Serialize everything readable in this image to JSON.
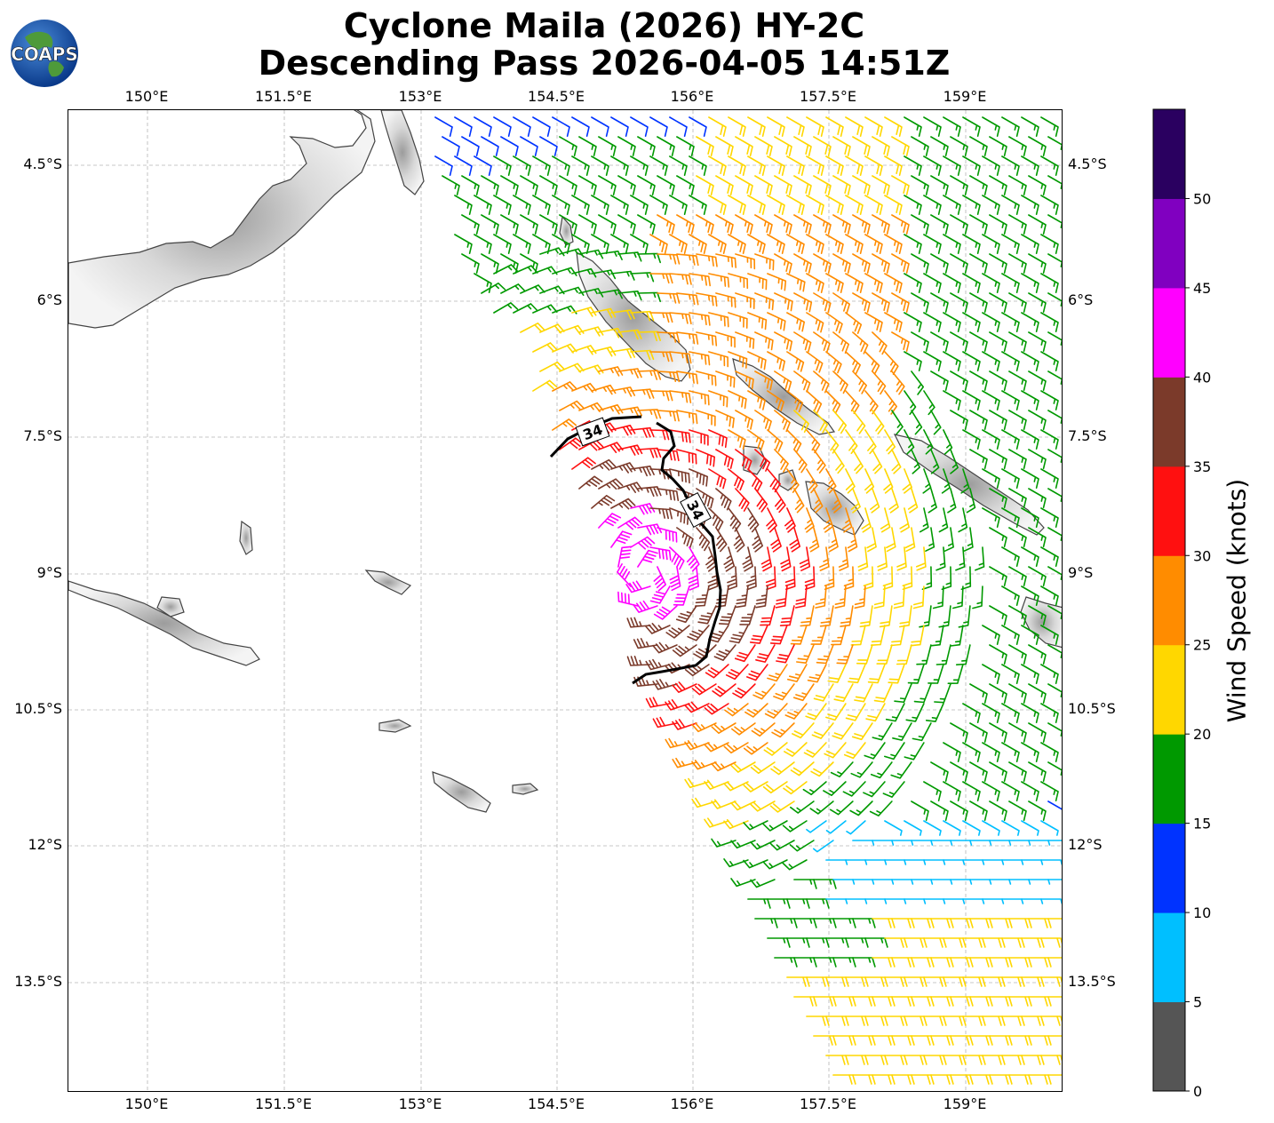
{
  "title": {
    "line1": "Cyclone Maila (2026) HY-2C",
    "line2": "Descending Pass 2026-04-05 14:51Z"
  },
  "logo": {
    "text": "COAPS"
  },
  "axes": {
    "lon_labels": [
      "150°E",
      "151.5°E",
      "153°E",
      "154.5°E",
      "156°E",
      "157.5°E",
      "159°E"
    ],
    "lat_labels": [
      "4.5°S",
      "6°S",
      "7.5°S",
      "9°S",
      "10.5°S",
      "12°S",
      "13.5°S"
    ]
  },
  "contour_labels": [
    "34",
    "34"
  ],
  "colorbar": {
    "title": "Wind Speed (knots)",
    "ticks": [
      "0",
      "5",
      "10",
      "15",
      "20",
      "25",
      "30",
      "35",
      "40",
      "45",
      "50"
    ],
    "bins": [
      {
        "min": 0,
        "max": 5,
        "color": "#555555"
      },
      {
        "min": 5,
        "max": 10,
        "color": "#00bfff"
      },
      {
        "min": 10,
        "max": 15,
        "color": "#0033ff"
      },
      {
        "min": 15,
        "max": 20,
        "color": "#009900"
      },
      {
        "min": 20,
        "max": 25,
        "color": "#ffd700"
      },
      {
        "min": 25,
        "max": 30,
        "color": "#ff8c00"
      },
      {
        "min": 30,
        "max": 35,
        "color": "#ff1010"
      },
      {
        "min": 35,
        "max": 40,
        "color": "#7b3a2a"
      },
      {
        "min": 40,
        "max": 45,
        "color": "#ff00ff"
      },
      {
        "min": 45,
        "max": 50,
        "color": "#8000c0"
      },
      {
        "min": 50,
        "max": 55,
        "color": "#2a0060"
      }
    ]
  }
}
